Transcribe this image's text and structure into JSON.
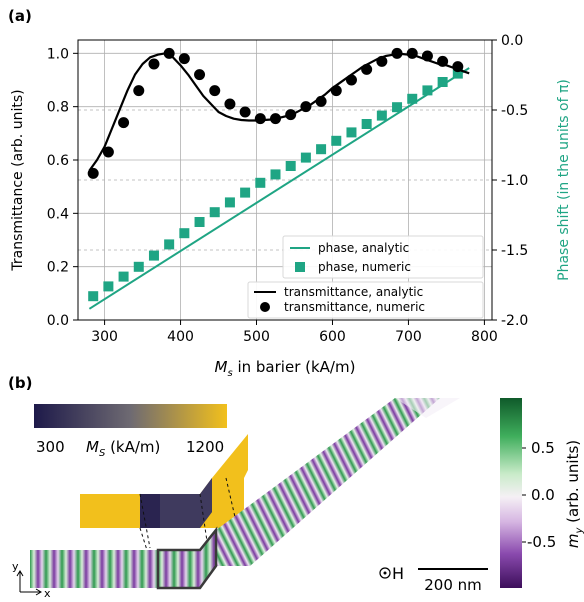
{
  "panel_a": {
    "label": "(a)",
    "xlabel_sym": "M",
    "xlabel_sub": "s",
    "xlabel_rest": " in barier (kA/m)",
    "ylabel_left": "Transmittance (arb. units)",
    "ylabel_right": "Phase shift (in the units of π)",
    "legend_phase": [
      "phase, analytic",
      "phase, numeric"
    ],
    "legend_trans": [
      "transmittance, analytic",
      "transmittance, numeric"
    ]
  },
  "panel_b": {
    "label": "(b)",
    "ms_cbar_min": "300",
    "ms_cbar_max": "1200",
    "ms_cbar_sym": "M",
    "ms_cbar_sub": "S",
    "ms_cbar_unit": " (kA/m)",
    "field_label": "H",
    "scalebar_label": "200 nm",
    "cbar_title_sym": "m",
    "cbar_title_sub": "y",
    "cbar_title_rest": " (arb. units)",
    "cbar_ticks": [
      "0.5",
      "0.0",
      "-0.5"
    ],
    "axis_y": "y",
    "axis_x": "x"
  },
  "colors": {
    "phase": "#1fa584",
    "transmittance": "#000000",
    "grid": "#b0b0b0",
    "ms_low": "#1e1a4a",
    "ms_high": "#f2c01c",
    "my_pos": "#0f5a2a",
    "my_neg": "#3c0e5a"
  },
  "chart_data": {
    "type": "line+scatter (dual y-axis)",
    "x_label": "M_s in barier (kA/m)",
    "xlim": [
      265,
      810
    ],
    "x_ticks": [
      300,
      400,
      500,
      600,
      700,
      800
    ],
    "y_left": {
      "label": "Transmittance (arb. units)",
      "lim": [
        0,
        1.05
      ],
      "ticks": [
        0.0,
        0.2,
        0.4,
        0.6,
        0.8,
        1.0
      ]
    },
    "y_right": {
      "label": "Phase shift (in the units of π)",
      "lim": [
        -2.0,
        0.0
      ],
      "ticks": [
        0.0,
        -0.5,
        -1.0,
        -1.5,
        -2.0
      ]
    },
    "grid": true,
    "series": [
      {
        "name": "transmittance, analytic",
        "axis": "left",
        "style": "line",
        "x": [
          280,
          290,
          300,
          310,
          320,
          330,
          340,
          350,
          360,
          370,
          380,
          385,
          390,
          400,
          410,
          420,
          430,
          440,
          450,
          460,
          470,
          480,
          490,
          500,
          510,
          520,
          530,
          540,
          550,
          560,
          570,
          580,
          590,
          600,
          610,
          620,
          630,
          640,
          650,
          660,
          670,
          680,
          690,
          700,
          710,
          720,
          730,
          740,
          750,
          760,
          770,
          780
        ],
        "y": [
          0.56,
          0.6,
          0.65,
          0.72,
          0.79,
          0.86,
          0.92,
          0.96,
          0.985,
          0.995,
          1.0,
          0.995,
          0.985,
          0.955,
          0.92,
          0.88,
          0.84,
          0.81,
          0.78,
          0.765,
          0.755,
          0.75,
          0.748,
          0.748,
          0.75,
          0.752,
          0.758,
          0.765,
          0.775,
          0.79,
          0.805,
          0.825,
          0.845,
          0.87,
          0.89,
          0.91,
          0.93,
          0.95,
          0.965,
          0.98,
          0.99,
          0.995,
          0.998,
          0.995,
          0.99,
          0.98,
          0.97,
          0.96,
          0.955,
          0.945,
          0.935,
          0.925
        ]
      },
      {
        "name": "transmittance, numeric",
        "axis": "left",
        "style": "circle",
        "x": [
          285,
          305,
          325,
          345,
          365,
          385,
          405,
          425,
          445,
          465,
          485,
          505,
          525,
          545,
          565,
          585,
          605,
          625,
          645,
          665,
          685,
          705,
          725,
          745,
          765
        ],
        "y": [
          0.55,
          0.63,
          0.74,
          0.86,
          0.96,
          1.0,
          0.98,
          0.92,
          0.86,
          0.81,
          0.78,
          0.755,
          0.755,
          0.77,
          0.8,
          0.82,
          0.86,
          0.9,
          0.94,
          0.97,
          1.0,
          1.0,
          0.99,
          0.97,
          0.95
        ]
      },
      {
        "name": "phase, analytic",
        "axis": "right",
        "style": "line",
        "x": [
          280,
          780
        ],
        "y": [
          -1.92,
          -0.2
        ]
      },
      {
        "name": "phase, numeric",
        "axis": "right",
        "style": "square",
        "x": [
          285,
          305,
          325,
          345,
          365,
          385,
          405,
          425,
          445,
          465,
          485,
          505,
          525,
          545,
          565,
          585,
          605,
          625,
          645,
          665,
          685,
          705,
          725,
          745,
          765
        ],
        "y": [
          -1.83,
          -1.76,
          -1.69,
          -1.62,
          -1.54,
          -1.46,
          -1.38,
          -1.3,
          -1.23,
          -1.16,
          -1.09,
          -1.02,
          -0.96,
          -0.9,
          -0.84,
          -0.78,
          -0.72,
          -0.66,
          -0.6,
          -0.54,
          -0.48,
          -0.42,
          -0.36,
          -0.3,
          -0.24
        ]
      }
    ]
  }
}
